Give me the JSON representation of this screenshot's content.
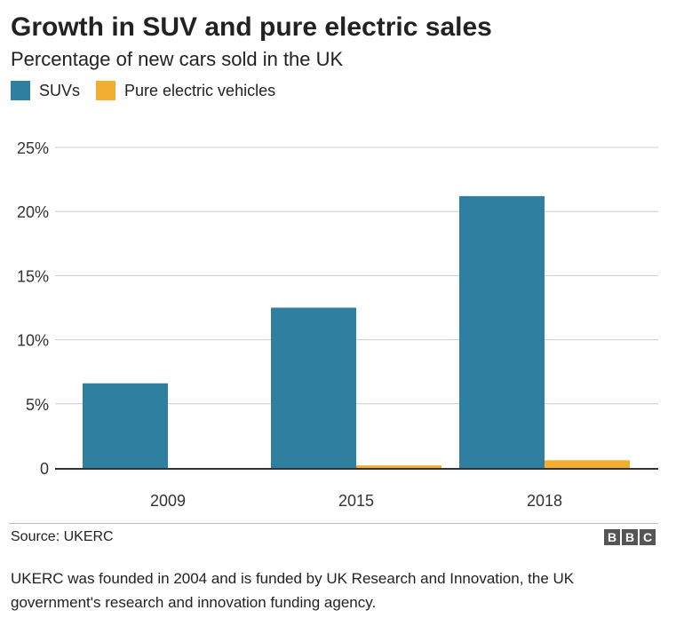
{
  "chart_data": {
    "type": "bar",
    "title": "Growth in SUV and pure electric sales",
    "subtitle": "Percentage of new cars sold in the UK",
    "categories": [
      "2009",
      "2015",
      "2018"
    ],
    "series": [
      {
        "name": "SUVs",
        "values": [
          6.6,
          12.5,
          21.2
        ],
        "color": "#2e7fa0"
      },
      {
        "name": "Pure electric vehicles",
        "values": [
          0,
          0.2,
          0.6
        ],
        "color": "#f2ae30"
      }
    ],
    "ylim": [
      0,
      25
    ],
    "yticks": [
      0,
      5,
      10,
      15,
      20,
      25
    ],
    "ytick_labels": [
      "0",
      "5%",
      "10%",
      "15%",
      "20%",
      "25%"
    ],
    "grid": true,
    "legend": "top-left"
  },
  "source": "Source: UKERC",
  "logo": [
    "B",
    "B",
    "C"
  ],
  "note": "UKERC was founded in 2004 and is funded by UK Research and Innovation, the UK government's research and innovation funding agency."
}
